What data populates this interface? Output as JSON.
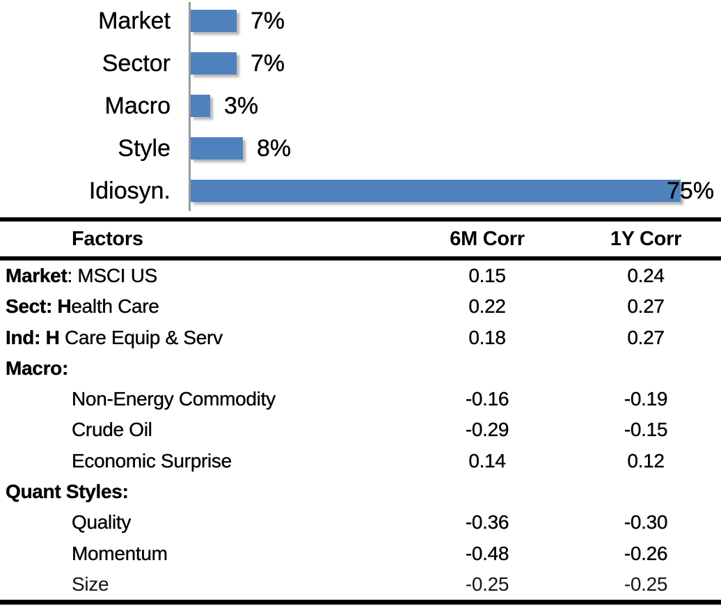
{
  "chart_data": [
    {
      "type": "bar",
      "orientation": "horizontal",
      "title": "",
      "categories": [
        "Market",
        "Sector",
        "Macro",
        "Style",
        "Idiosyn."
      ],
      "values": [
        7,
        7,
        3,
        8,
        75
      ],
      "data_labels": [
        "7%",
        "7%",
        "3%",
        "8%",
        "75%"
      ],
      "unit": "%",
      "xlim": [
        0,
        80
      ],
      "grid": false,
      "legend": "none",
      "bar_color": "#4f81bd",
      "axis_color": "#9b9b9b",
      "label_color": "#000000"
    },
    {
      "type": "table",
      "columns": [
        "Factors",
        "6M Corr",
        "1Y Corr"
      ],
      "rows": [
        {
          "label_bold": "Market",
          "label_rest": ": MSCI US",
          "indent": false,
          "light": false,
          "corr_6m": "0.15",
          "corr_1y": "0.24"
        },
        {
          "label_bold": "Sect: H",
          "label_rest": "ealth Care",
          "indent": false,
          "light": false,
          "corr_6m": "0.22",
          "corr_1y": "0.27"
        },
        {
          "label_bold": "Ind: H",
          "label_rest": " Care Equip & Serv",
          "indent": false,
          "light": false,
          "corr_6m": "0.18",
          "corr_1y": "0.27"
        },
        {
          "label_bold": "Macro:",
          "label_rest": "",
          "indent": false,
          "light": false,
          "corr_6m": "",
          "corr_1y": ""
        },
        {
          "label_bold": "",
          "label_rest": "Non-Energy Commodity",
          "indent": true,
          "light": false,
          "corr_6m": "-0.16",
          "corr_1y": "-0.19"
        },
        {
          "label_bold": "",
          "label_rest": "Crude Oil",
          "indent": true,
          "light": false,
          "corr_6m": "-0.29",
          "corr_1y": "-0.15"
        },
        {
          "label_bold": "",
          "label_rest": "Economic Surprise",
          "indent": true,
          "light": false,
          "corr_6m": "0.14",
          "corr_1y": "0.12"
        },
        {
          "label_bold": "Quant Styles:",
          "label_rest": "",
          "indent": false,
          "light": false,
          "corr_6m": "",
          "corr_1y": ""
        },
        {
          "label_bold": "",
          "label_rest": "Quality",
          "indent": true,
          "light": false,
          "corr_6m": "-0.36",
          "corr_1y": "-0.30"
        },
        {
          "label_bold": "",
          "label_rest": "Momentum",
          "indent": true,
          "light": false,
          "corr_6m": "-0.48",
          "corr_1y": "-0.26"
        },
        {
          "label_bold": "",
          "label_rest": "Size",
          "indent": true,
          "light": true,
          "corr_6m": "-0.25",
          "corr_1y": "-0.25"
        }
      ]
    }
  ]
}
